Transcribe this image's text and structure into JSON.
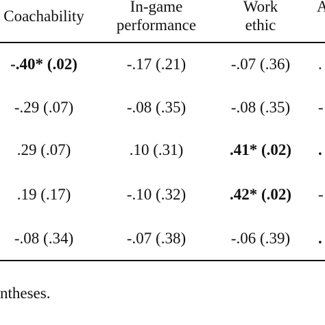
{
  "table": {
    "headers": {
      "coachability": {
        "line1": "Coachability",
        "line2": ""
      },
      "in_game": {
        "line1": "In-game",
        "line2": "performance"
      },
      "work_ethic": {
        "line1": "Work",
        "line2": "ethic"
      },
      "cut_col": {
        "line1": "A",
        "line2": ""
      }
    },
    "rows": [
      {
        "c1": "-.40* (.02)",
        "c1_bold": true,
        "c2": "-.17 (.21)",
        "c2_bold": false,
        "c3": "-.07 (.36)",
        "c3_bold": false,
        "c4": ".",
        "c4_bold": false
      },
      {
        "c1": "-.29 (.07)",
        "c1_bold": false,
        "c2": "-.08 (.35)",
        "c2_bold": false,
        "c3": "-.08 (.35)",
        "c3_bold": false,
        "c4": "-",
        "c4_bold": false
      },
      {
        "c1": ".29 (.07)",
        "c1_bold": false,
        "c2": ".10 (.31)",
        "c2_bold": false,
        "c3": ".41* (.02)",
        "c3_bold": true,
        "c4": ".",
        "c4_bold": true
      },
      {
        "c1": ".19 (.17)",
        "c1_bold": false,
        "c2": "-.10 (.32)",
        "c2_bold": false,
        "c3": ".42* (.02)",
        "c3_bold": true,
        "c4": "-",
        "c4_bold": false
      },
      {
        "c1": "-.08 (.34)",
        "c1_bold": false,
        "c2": "-.07 (.38)",
        "c2_bold": false,
        "c3": "-.06 (.39)",
        "c3_bold": false,
        "c4": ".",
        "c4_bold": true
      }
    ]
  },
  "note": {
    "text": "ntheses."
  }
}
